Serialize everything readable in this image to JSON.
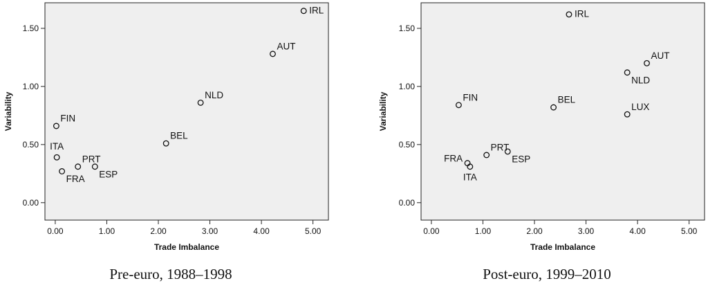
{
  "chart_data": [
    {
      "type": "scatter",
      "xlabel": "Trade Imbalance",
      "ylabel": "Variability",
      "caption": "Pre-euro, 1988–1998",
      "xlim": [
        -0.2,
        5.3
      ],
      "ylim": [
        -0.15,
        1.72
      ],
      "xticks": [
        "0.00",
        "1.00",
        "2.00",
        "3.00",
        "4.00",
        "5.00"
      ],
      "yticks": [
        "0.00",
        "0.50",
        "1.00",
        "1.50"
      ],
      "points": [
        {
          "label": "IRL",
          "x": 4.82,
          "y": 1.65,
          "pos": "right"
        },
        {
          "label": "AUT",
          "x": 4.22,
          "y": 1.28,
          "pos": "upright"
        },
        {
          "label": "NLD",
          "x": 2.82,
          "y": 0.86,
          "pos": "upright"
        },
        {
          "label": "FIN",
          "x": 0.02,
          "y": 0.66,
          "pos": "upright"
        },
        {
          "label": "BEL",
          "x": 2.15,
          "y": 0.51,
          "pos": "upright"
        },
        {
          "label": "ITA",
          "x": 0.03,
          "y": 0.39,
          "pos": "up"
        },
        {
          "label": "PRT",
          "x": 0.44,
          "y": 0.31,
          "pos": "upright"
        },
        {
          "label": "ESP",
          "x": 0.77,
          "y": 0.31,
          "pos": "downright"
        },
        {
          "label": "FRA",
          "x": 0.13,
          "y": 0.27,
          "pos": "downright"
        }
      ],
      "grid": false,
      "legend": "none"
    },
    {
      "type": "scatter",
      "xlabel": "Trade Imbalance",
      "ylabel": "Variability",
      "caption": "Post-euro, 1999–2010",
      "xlim": [
        -0.2,
        5.3
      ],
      "ylim": [
        -0.15,
        1.72
      ],
      "xticks": [
        "0.00",
        "1.00",
        "2.00",
        "3.00",
        "4.00",
        "5.00"
      ],
      "yticks": [
        "0.00",
        "0.50",
        "1.00",
        "1.50"
      ],
      "points": [
        {
          "label": "IRL",
          "x": 2.67,
          "y": 1.62,
          "pos": "right"
        },
        {
          "label": "AUT",
          "x": 4.18,
          "y": 1.2,
          "pos": "upright"
        },
        {
          "label": "NLD",
          "x": 3.8,
          "y": 1.12,
          "pos": "downright"
        },
        {
          "label": "FIN",
          "x": 0.53,
          "y": 0.84,
          "pos": "upright"
        },
        {
          "label": "BEL",
          "x": 2.37,
          "y": 0.82,
          "pos": "upright"
        },
        {
          "label": "LUX",
          "x": 3.8,
          "y": 0.76,
          "pos": "upright"
        },
        {
          "label": "PRT",
          "x": 1.07,
          "y": 0.41,
          "pos": "upright"
        },
        {
          "label": "ESP",
          "x": 1.48,
          "y": 0.44,
          "pos": "downright"
        },
        {
          "label": "FRA",
          "x": 0.7,
          "y": 0.34,
          "pos": "left"
        },
        {
          "label": "ITA",
          "x": 0.75,
          "y": 0.31,
          "pos": "below"
        }
      ],
      "grid": false,
      "legend": "none"
    }
  ]
}
